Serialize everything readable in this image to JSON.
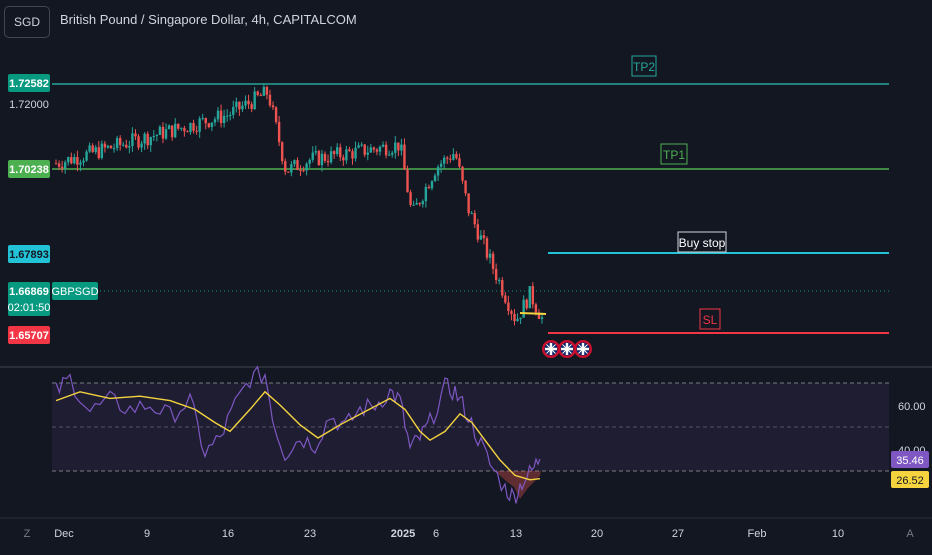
{
  "header": {
    "symbol_badge": "SGD",
    "title": "British Pound / Singapore Dollar, 4h, CAPITALCOM"
  },
  "colors": {
    "background": "#131722",
    "up": "#26a69a",
    "down": "#ef5350",
    "tp": "#26a69a",
    "tp1": "#4caf50",
    "buy_stop": "#22c3d6",
    "sl": "#f23645",
    "rsi": "#7e57c2",
    "rsi_ma": "#f5d33f",
    "highlight": "#f5d33f"
  },
  "price_labels": [
    {
      "text": "1.72582",
      "bg": "#089981",
      "price": 1.72582
    },
    {
      "text": "1.72000",
      "bg": "",
      "price": 1.72
    },
    {
      "text": "1.70238",
      "bg": "#4caf50",
      "price": 1.70238
    },
    {
      "text": "1.67893",
      "bg": "#22c3d6",
      "price": 1.67893
    },
    {
      "text": "1.66869",
      "bg": "#089981",
      "price": 1.66869
    },
    {
      "text": "02:01:50",
      "bg": "#089981",
      "price": null
    },
    {
      "text": "1.65707",
      "bg": "#f23645",
      "price": 1.65707
    }
  ],
  "ticker_tag": "GBPSGD",
  "levels": [
    {
      "label": "TP2",
      "price": 1.72582,
      "color": "#26a69a"
    },
    {
      "label": "TP1",
      "price": 1.70238,
      "color": "#4caf50"
    },
    {
      "label": "Buy stop",
      "price": 1.67893,
      "color": "#22c3d6"
    },
    {
      "label": "SL",
      "price": 1.65707,
      "color": "#f23645"
    }
  ],
  "current_price": 1.66869,
  "rsi_axis": {
    "labels": [
      "60.00",
      "40.00"
    ],
    "rsi_value": "35.46",
    "rsi_ma_value": "26.52"
  },
  "time_axis": {
    "labels": [
      "Dec",
      "9",
      "16",
      "23",
      "2025",
      "6",
      "13",
      "20",
      "27",
      "Feb",
      "10"
    ]
  },
  "corner_letters": {
    "left": "Z",
    "right": "A"
  },
  "chart_data": {
    "type": "candlestick",
    "symbol": "GBPSGD",
    "timeframe": "4h",
    "x": [
      "Dec",
      "9",
      "16",
      "23",
      "2025",
      "6",
      "13",
      "20",
      "27",
      "Feb",
      "10"
    ],
    "price_range": [
      1.648,
      1.735
    ],
    "close_path": [
      {
        "x": "Dec",
        "close": 1.702
      },
      {
        "x": "9",
        "close": 1.709
      },
      {
        "x": "16",
        "close": 1.715
      },
      {
        "x": "20",
        "close": 1.721
      },
      {
        "x": "21",
        "close": 1.7
      },
      {
        "x": "23",
        "close": 1.703
      },
      {
        "x": "2025",
        "close": 1.707
      },
      {
        "x": "3",
        "close": 1.688
      },
      {
        "x": "6",
        "close": 1.701
      },
      {
        "x": "8",
        "close": 1.705
      },
      {
        "x": "9",
        "close": 1.69
      },
      {
        "x": "10",
        "close": 1.676
      },
      {
        "x": "13",
        "close": 1.66
      },
      {
        "x": "14",
        "close": 1.667
      },
      {
        "x": "15",
        "close": 1.6605
      }
    ],
    "rsi": {
      "range": [
        10,
        75
      ],
      "levels": [
        70,
        50,
        30
      ],
      "last": 35.46,
      "ma_last": 26.52
    }
  }
}
